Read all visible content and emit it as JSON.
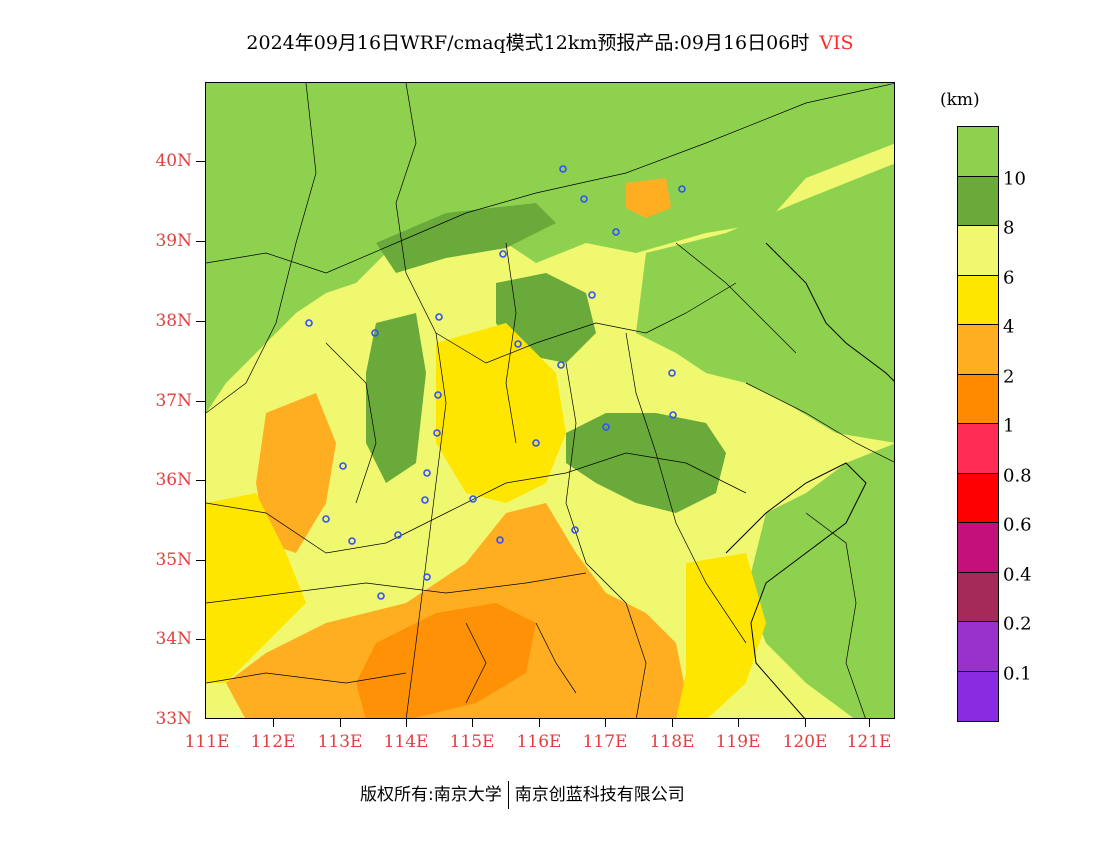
{
  "title": {
    "text": "2024年09月16日WRF/cmaq模式12km预报产品:09月16日06时",
    "variable": "VIS"
  },
  "legend": {
    "unit": "(km)",
    "colors": [
      "#8ed14f",
      "#6aaa3a",
      "#f0f870",
      "#ffe600",
      "#ffae22",
      "#ff8a00",
      "#ff2d55",
      "#ff0000",
      "#c4107a",
      "#a52a5a",
      "#9932cc",
      "#8a2be2"
    ],
    "labels": [
      "10",
      "8",
      "6",
      "4",
      "2",
      "1",
      "0.8",
      "0.6",
      "0.4",
      "0.2",
      "0.1"
    ]
  },
  "axes": {
    "lat_labels": [
      "40N",
      "39N",
      "38N",
      "37N",
      "36N",
      "35N",
      "34N",
      "33N"
    ],
    "lon_labels": [
      "111E",
      "112E",
      "113E",
      "114E",
      "115E",
      "116E",
      "117E",
      "118E",
      "119E",
      "120E",
      "121E"
    ]
  },
  "footer": {
    "left": "版权所有:南京大学",
    "right": "南京创蓝科技有限公司"
  }
}
